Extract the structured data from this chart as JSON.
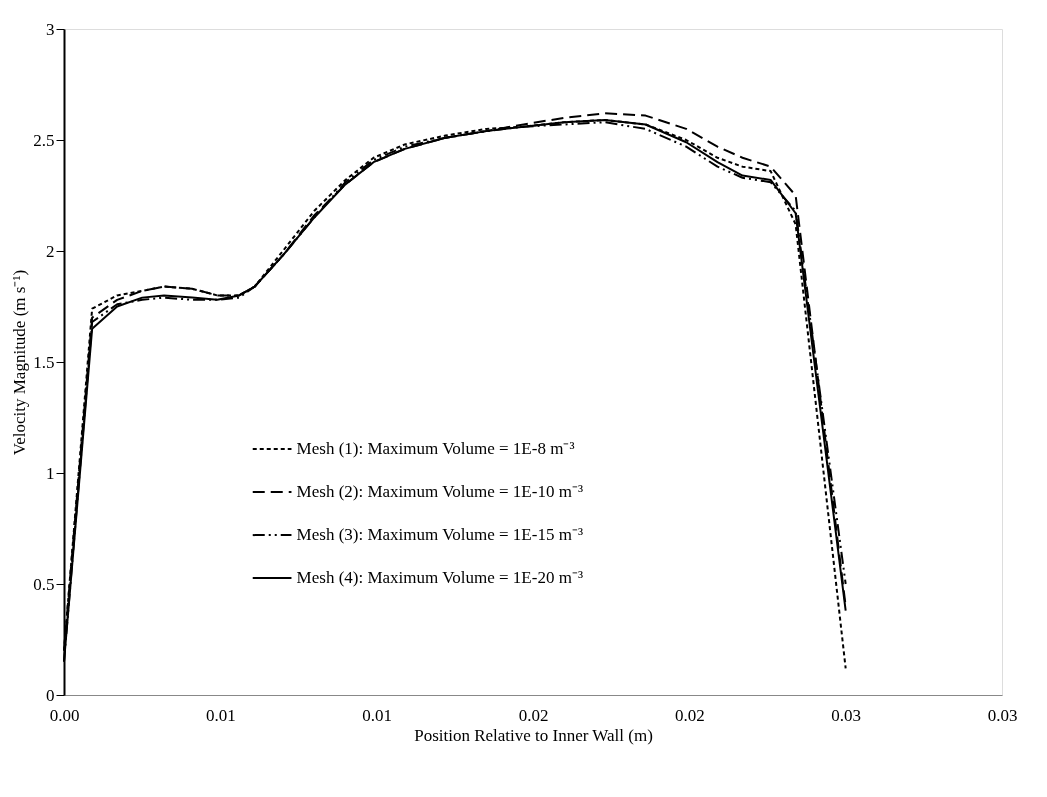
{
  "chart_data": {
    "type": "line",
    "xlabel": "Position Relative to Inner Wall (m)",
    "ylabel": "Velocity Magnitude (m s⁻¹)",
    "x": [
      0.0,
      0.0009,
      0.0017,
      0.0025,
      0.0032,
      0.0041,
      0.0049,
      0.0056,
      0.0061,
      0.007,
      0.008,
      0.009,
      0.0099,
      0.0109,
      0.0122,
      0.0135,
      0.0147,
      0.016,
      0.0173,
      0.0186,
      0.0199,
      0.0209,
      0.0217,
      0.0226,
      0.0234,
      0.025
    ],
    "series": [
      {
        "name": "Mesh (1): Maximum Volume = 1E-8 m⁻³",
        "color": "#000000",
        "line_style": "dotted",
        "values": [
          0.2,
          1.74,
          1.8,
          1.82,
          1.84,
          1.83,
          1.8,
          1.8,
          1.84,
          2.0,
          2.18,
          2.32,
          2.42,
          2.48,
          2.52,
          2.55,
          2.56,
          2.58,
          2.59,
          2.57,
          2.5,
          2.42,
          2.38,
          2.36,
          2.12,
          0.12
        ]
      },
      {
        "name": "Mesh (2): Maximum Volume = 1E-10 m⁻³",
        "color": "#000000",
        "line_style": "dashed",
        "values": [
          0.2,
          1.7,
          1.78,
          1.82,
          1.84,
          1.83,
          1.8,
          1.8,
          1.84,
          1.98,
          2.16,
          2.3,
          2.4,
          2.46,
          2.51,
          2.54,
          2.57,
          2.6,
          2.62,
          2.61,
          2.55,
          2.47,
          2.42,
          2.38,
          2.25,
          0.4
        ]
      },
      {
        "name": "Mesh (3): Maximum Volume = 1E-15 m⁻³",
        "color": "#000000",
        "line_style": "dashdot",
        "values": [
          0.15,
          1.68,
          1.76,
          1.78,
          1.79,
          1.78,
          1.78,
          1.79,
          1.84,
          1.98,
          2.15,
          2.31,
          2.41,
          2.47,
          2.51,
          2.54,
          2.56,
          2.57,
          2.58,
          2.55,
          2.47,
          2.38,
          2.33,
          2.31,
          2.18,
          0.5
        ]
      },
      {
        "name": "Mesh (4): Maximum Volume = 1E-20 m⁻³",
        "color": "#000000",
        "line_style": "solid",
        "values": [
          0.15,
          1.65,
          1.75,
          1.79,
          1.8,
          1.79,
          1.78,
          1.8,
          1.84,
          1.98,
          2.15,
          2.3,
          2.4,
          2.46,
          2.51,
          2.54,
          2.56,
          2.58,
          2.59,
          2.57,
          2.49,
          2.4,
          2.34,
          2.32,
          2.17,
          0.38
        ]
      }
    ],
    "xlim": [
      0,
      0.03
    ],
    "ylim": [
      0,
      3
    ],
    "xticks": [
      {
        "value": 0,
        "label": "0.00"
      },
      {
        "value": 0.005,
        "label": "0.01"
      },
      {
        "value": 0.01,
        "label": "0.01"
      },
      {
        "value": 0.015,
        "label": "0.02"
      },
      {
        "value": 0.02,
        "label": "0.02"
      },
      {
        "value": 0.025,
        "label": "0.03"
      },
      {
        "value": 0.03,
        "label": "0.03"
      }
    ],
    "yticks": [
      0,
      0.5,
      1,
      1.5,
      2,
      2.5,
      3
    ],
    "grid": false,
    "legend": "bottom"
  }
}
